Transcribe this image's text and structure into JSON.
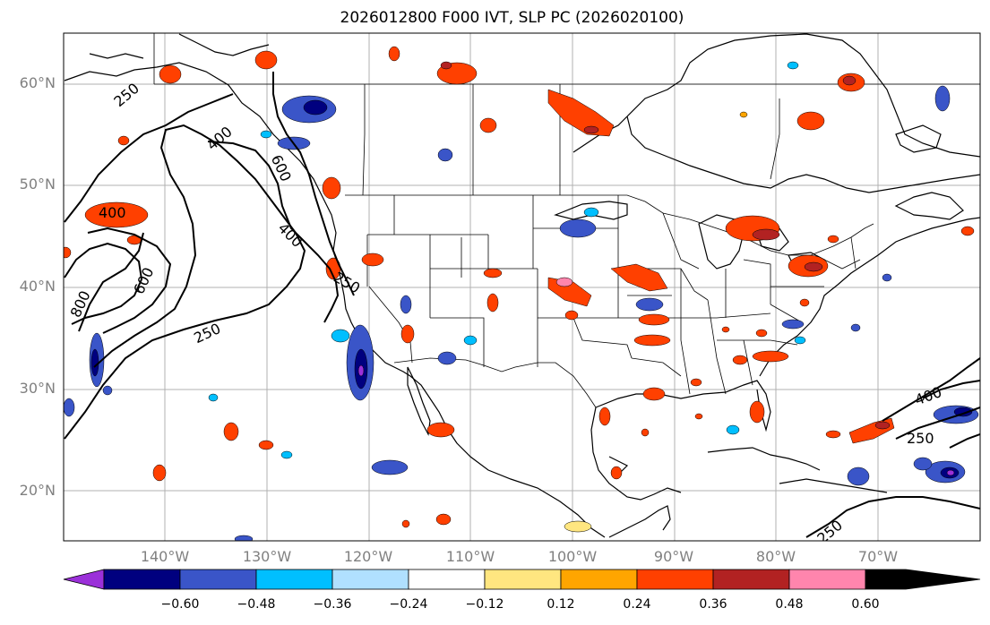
{
  "title": "2026012800 F000 IVT, SLP PC (2026020100)",
  "lat_labels": [
    "60°N",
    "50°N",
    "40°N",
    "30°N",
    "20°N"
  ],
  "lon_labels": [
    "140°W",
    "130°W",
    "120°W",
    "110°W",
    "100°W",
    "90°W",
    "80°W",
    "70°W"
  ],
  "contour_labels": [
    "250",
    "400",
    "600",
    "800",
    "600",
    "400",
    "250",
    "250",
    "400",
    "250",
    "250",
    "400"
  ],
  "colorbar": {
    "ticks": [
      "−0.60",
      "−0.48",
      "−0.36",
      "−0.24",
      "−0.12",
      "0.12",
      "0.24",
      "0.36",
      "0.48",
      "0.60"
    ],
    "colors": [
      "#9b30d9",
      "#00007f",
      "#3a55c8",
      "#00bfff",
      "#b0e0ff",
      "#ffffff",
      "#ffe680",
      "#ffa500",
      "#ff4000",
      "#b22222",
      "#ff85ad"
    ]
  }
}
